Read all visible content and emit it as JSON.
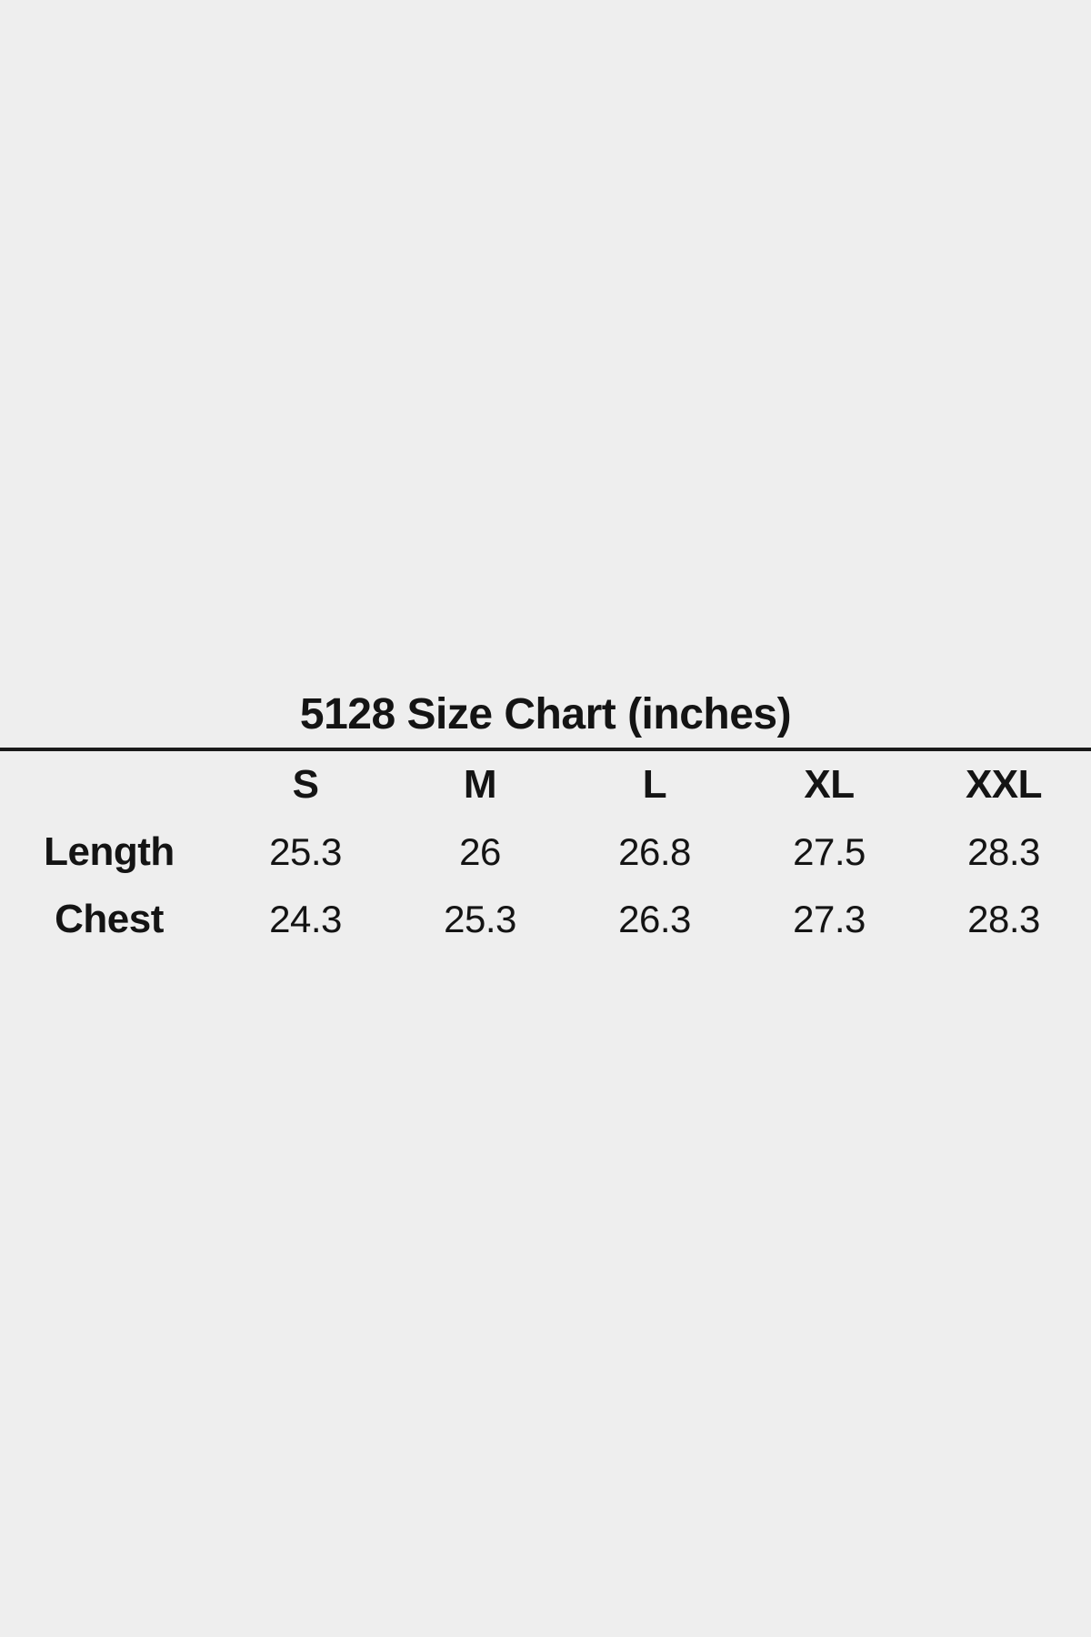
{
  "page": {
    "background_color": "#eeeeee",
    "text_color": "#141414",
    "divider_color": "#1a1a1a"
  },
  "chart_data": {
    "type": "table",
    "title": "5128 Size Chart (inches)",
    "columns": [
      "S",
      "M",
      "L",
      "XL",
      "XXL"
    ],
    "rows": [
      {
        "label": "Length",
        "values": [
          "25.3",
          "26",
          "26.8",
          "27.5",
          "28.3"
        ]
      },
      {
        "label": "Chest",
        "values": [
          "24.3",
          "25.3",
          "26.3",
          "27.3",
          "28.3"
        ]
      }
    ]
  }
}
